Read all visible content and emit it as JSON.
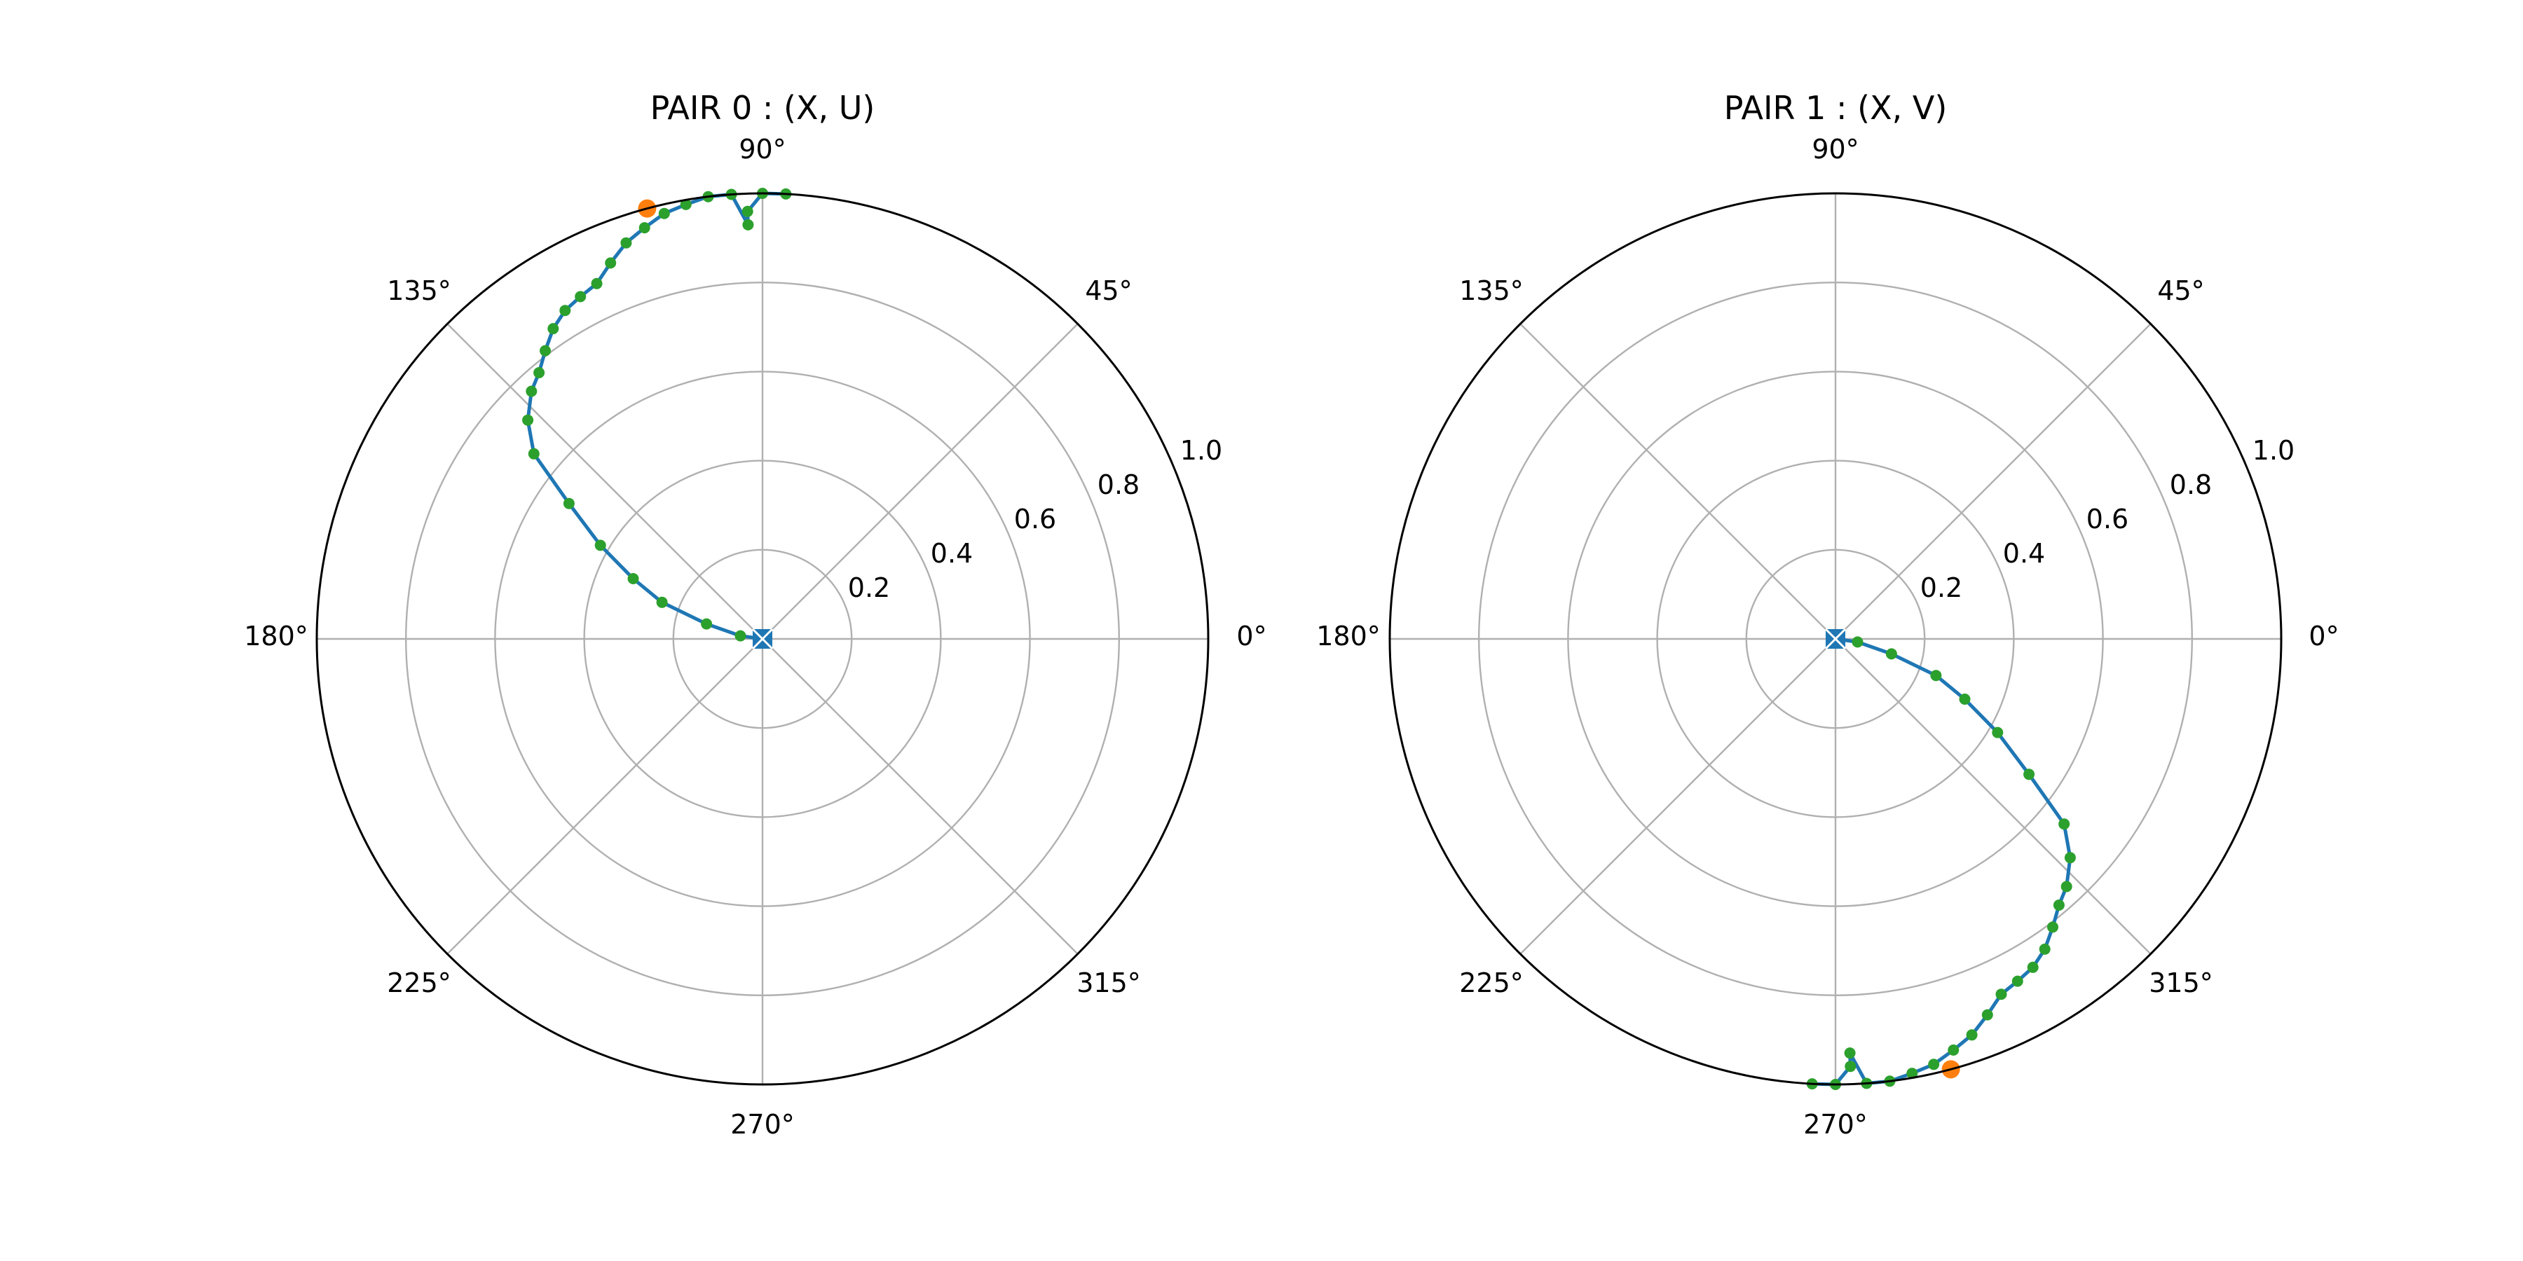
{
  "colors": {
    "line": "#1f77b4",
    "marker_small": "#2ca02c",
    "marker_large": "#ff7f0e",
    "grid": "#b0b0b0",
    "frame": "#000000"
  },
  "chart_data": [
    {
      "type": "line",
      "projection": "polar",
      "title": "PAIR 0 : (X, U)",
      "theta_tick_labels": [
        "0°",
        "45°",
        "90°",
        "135°",
        "180°",
        "225°",
        "270°",
        "315°"
      ],
      "r_tick_labels": [
        "0.2",
        "0.4",
        "0.6",
        "0.8",
        "1.0"
      ],
      "rlim": [
        0,
        1.0
      ],
      "grid": true,
      "series": [
        {
          "marker": "circle",
          "theta_deg": [
            0,
            172,
            165,
            160,
            155,
            150,
            145,
            141,
            137,
            133,
            130,
            127,
            124,
            121,
            118,
            115,
            112,
            109,
            106,
            103,
            100,
            97,
            94,
            92,
            92,
            90,
            87
          ],
          "r": [
            0.0,
            0.05,
            0.13,
            0.24,
            0.32,
            0.42,
            0.53,
            0.66,
            0.72,
            0.76,
            0.78,
            0.81,
            0.84,
            0.86,
            0.87,
            0.88,
            0.91,
            0.94,
            0.96,
            0.98,
            0.99,
            1.0,
            1.0,
            0.93,
            0.96,
            1.0,
            1.0
          ]
        }
      ],
      "highlight_points": [
        {
          "marker": "circle-large",
          "theta_deg": 105,
          "r": 1.0
        },
        {
          "marker": "square-cross",
          "theta_deg": 0,
          "r": 0.0
        }
      ]
    },
    {
      "type": "line",
      "projection": "polar",
      "title": "PAIR 1 : (X, V)",
      "theta_tick_labels": [
        "0°",
        "45°",
        "90°",
        "135°",
        "180°",
        "225°",
        "270°",
        "315°"
      ],
      "r_tick_labels": [
        "0.2",
        "0.4",
        "0.6",
        "0.8",
        "1.0"
      ],
      "rlim": [
        0,
        1.0
      ],
      "grid": true,
      "series": [
        {
          "marker": "circle",
          "theta_deg": [
            0,
            352,
            345,
            340,
            335,
            330,
            325,
            321,
            317,
            313,
            310,
            307,
            304,
            301,
            298,
            295,
            292,
            289,
            286,
            283,
            280,
            277,
            274,
            272,
            272,
            270,
            267
          ],
          "r": [
            0.0,
            0.05,
            0.13,
            0.24,
            0.32,
            0.42,
            0.53,
            0.66,
            0.72,
            0.76,
            0.78,
            0.81,
            0.84,
            0.86,
            0.87,
            0.88,
            0.91,
            0.94,
            0.96,
            0.98,
            0.99,
            1.0,
            1.0,
            0.93,
            0.96,
            1.0,
            1.0
          ]
        }
      ],
      "highlight_points": [
        {
          "marker": "circle-large",
          "theta_deg": 285,
          "r": 1.0
        },
        {
          "marker": "square-cross",
          "theta_deg": 0,
          "r": 0.0
        }
      ]
    }
  ]
}
